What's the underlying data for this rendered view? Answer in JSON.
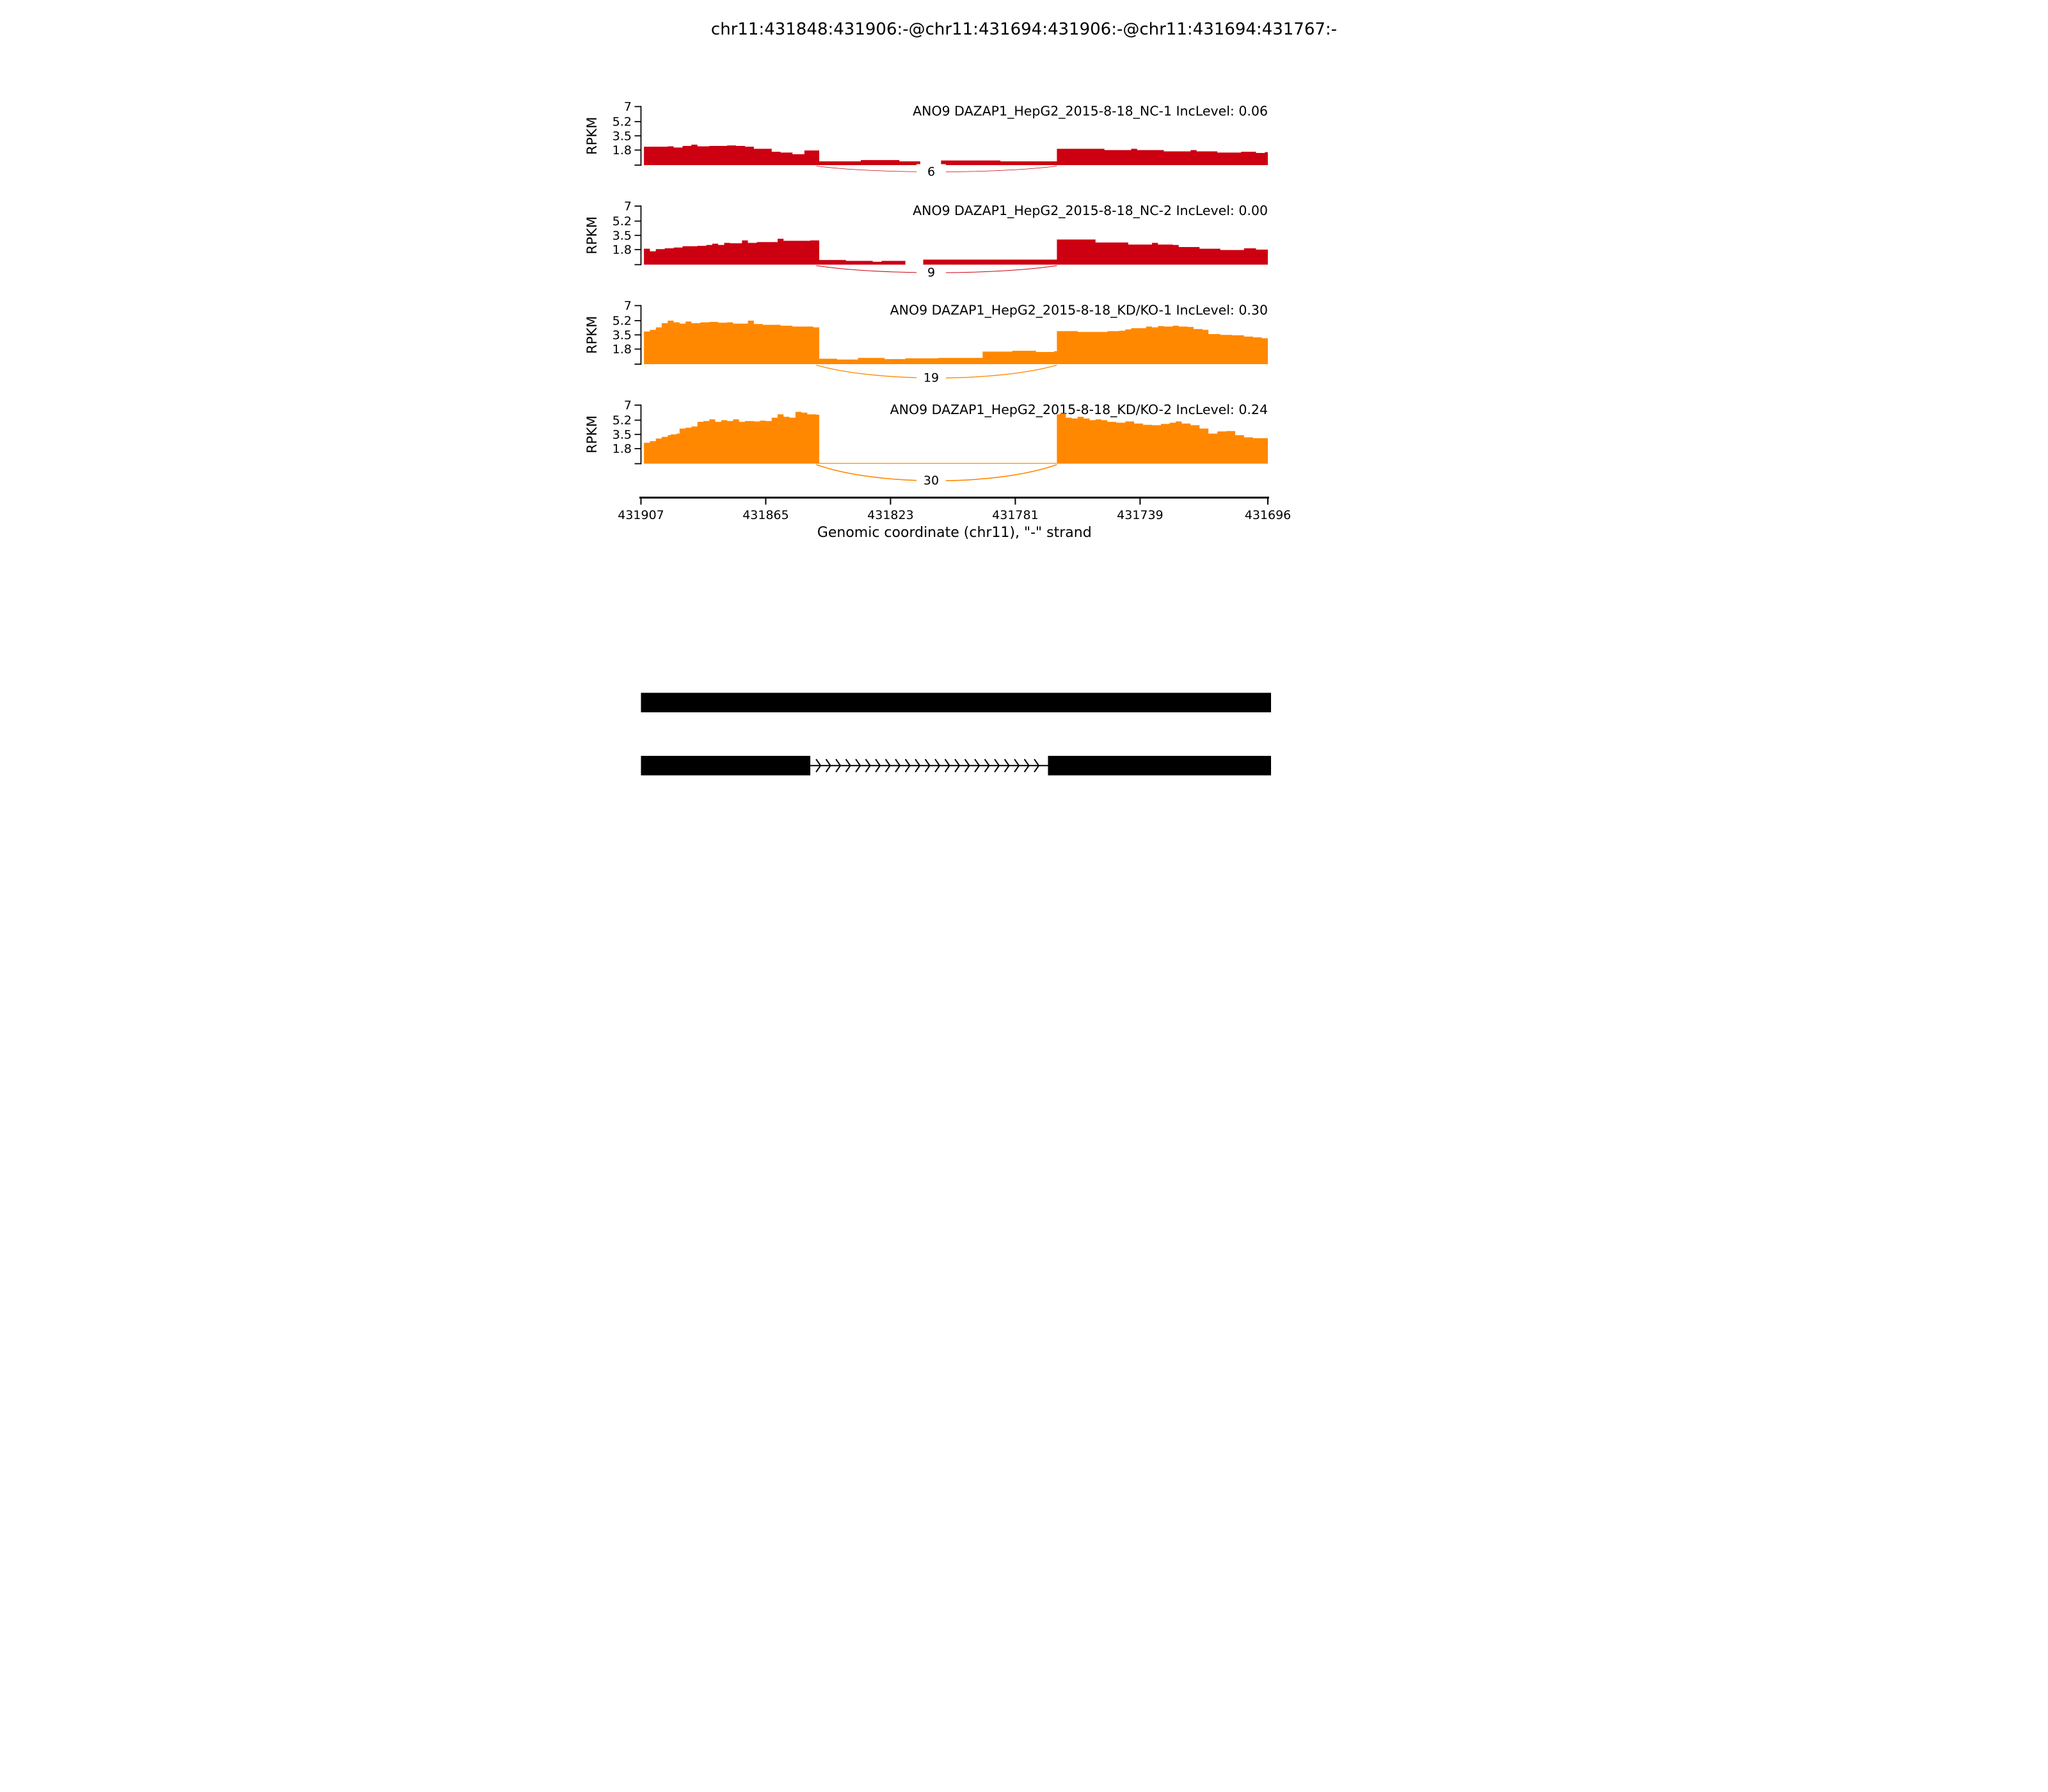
{
  "title": "chr11:431848:431906:-@chr11:431694:431906:-@chr11:431694:431767:-",
  "colors": {
    "control": "#CC0011",
    "knockdown": "#FF8800",
    "isoform": "#000000"
  },
  "chart_data": {
    "type": "area",
    "description": "rMATS sashimi plot, RNA-seq read coverage with junction read arcs",
    "x": {
      "label": "Genomic coordinate (chr11), \"-\" strand",
      "start": 431907,
      "end": 431696,
      "ticks": [
        431907,
        431865,
        431823,
        431781,
        431739,
        431696
      ]
    },
    "y": {
      "label": "RPKM",
      "max": 7,
      "ticks": [
        7,
        5.2,
        3.5,
        1.8
      ]
    },
    "junction": {
      "from": 431848,
      "to": 431767
    },
    "tracks": [
      {
        "sample": "NC-1",
        "label": "ANO9 DAZAP1_HepG2_2015-8-18_NC-1 IncLevel: 0.06",
        "inc_level": 0.06,
        "color": "#CC0011",
        "junction_reads": 6,
        "intron_zero": false,
        "coverage_rpkm": [
          [
            431906,
            2.2
          ],
          [
            431898,
            2.25
          ],
          [
            431896,
            2.1
          ],
          [
            431893,
            2.3
          ],
          [
            431890,
            2.45
          ],
          [
            431888,
            2.25
          ],
          [
            431884,
            2.3
          ],
          [
            431878,
            2.35
          ],
          [
            431875,
            2.3
          ],
          [
            431872,
            2.2
          ],
          [
            431869,
            1.95
          ],
          [
            431866,
            1.95
          ],
          [
            431863,
            1.6
          ],
          [
            431860,
            1.5
          ],
          [
            431856,
            1.3
          ],
          [
            431853,
            1.3
          ],
          [
            431852,
            1.75
          ],
          [
            431848,
            1.75
          ],
          [
            431847,
            0.45
          ],
          [
            431836,
            0.45
          ],
          [
            431833,
            0.6
          ],
          [
            431822,
            0.6
          ],
          [
            431820,
            0.45
          ],
          [
            431814,
            0.45
          ],
          [
            431813,
            0
          ],
          [
            431807,
            0
          ],
          [
            431806,
            0.55
          ],
          [
            431788,
            0.55
          ],
          [
            431786,
            0.45
          ],
          [
            431768,
            0.45
          ],
          [
            431767,
            1.95
          ],
          [
            431753,
            1.95
          ],
          [
            431751,
            1.8
          ],
          [
            431744,
            1.8
          ],
          [
            431742,
            1.95
          ],
          [
            431740,
            1.8
          ],
          [
            431733,
            1.8
          ],
          [
            431731,
            1.65
          ],
          [
            431724,
            1.65
          ],
          [
            431722,
            1.8
          ],
          [
            431720,
            1.65
          ],
          [
            431714,
            1.65
          ],
          [
            431713,
            1.5
          ],
          [
            431707,
            1.5
          ],
          [
            431705,
            1.6
          ],
          [
            431700,
            1.45
          ],
          [
            431697,
            1.55
          ],
          [
            431696,
            1.55
          ]
        ]
      },
      {
        "sample": "NC-2",
        "label": "ANO9 DAZAP1_HepG2_2015-8-18_NC-2 IncLevel: 0.00",
        "inc_level": 0.0,
        "color": "#CC0011",
        "junction_reads": 9,
        "intron_zero": false,
        "coverage_rpkm": [
          [
            431906,
            1.9
          ],
          [
            431904,
            1.6
          ],
          [
            431902,
            1.85
          ],
          [
            431899,
            1.95
          ],
          [
            431896,
            2.05
          ],
          [
            431893,
            2.2
          ],
          [
            431888,
            2.25
          ],
          [
            431885,
            2.35
          ],
          [
            431883,
            2.5
          ],
          [
            431881,
            2.35
          ],
          [
            431879,
            2.6
          ],
          [
            431877,
            2.55
          ],
          [
            431873,
            2.9
          ],
          [
            431871,
            2.6
          ],
          [
            431868,
            2.7
          ],
          [
            431863,
            2.7
          ],
          [
            431861,
            3.1
          ],
          [
            431859,
            2.85
          ],
          [
            431850,
            2.9
          ],
          [
            431848,
            2.9
          ],
          [
            431847,
            0.55
          ],
          [
            431840,
            0.55
          ],
          [
            431838,
            0.45
          ],
          [
            431831,
            0.45
          ],
          [
            431829,
            0.35
          ],
          [
            431826,
            0.45
          ],
          [
            431819,
            0.45
          ],
          [
            431818,
            0
          ],
          [
            431813,
            0
          ],
          [
            431812,
            0.6
          ],
          [
            431768,
            0.6
          ],
          [
            431767,
            3.0
          ],
          [
            431756,
            3.0
          ],
          [
            431754,
            2.65
          ],
          [
            431745,
            2.65
          ],
          [
            431743,
            2.4
          ],
          [
            431737,
            2.4
          ],
          [
            431735,
            2.6
          ],
          [
            431733,
            2.4
          ],
          [
            431728,
            2.35
          ],
          [
            431726,
            2.1
          ],
          [
            431721,
            2.1
          ],
          [
            431719,
            1.9
          ],
          [
            431714,
            1.9
          ],
          [
            431712,
            1.75
          ],
          [
            431706,
            1.75
          ],
          [
            431704,
            1.95
          ],
          [
            431700,
            1.8
          ],
          [
            431696,
            1.8
          ]
        ]
      },
      {
        "sample": "KD/KO-1",
        "label": "ANO9 DAZAP1_HepG2_2015-8-18_KD/KO-1 IncLevel: 0.30",
        "inc_level": 0.3,
        "color": "#FF8800",
        "junction_reads": 19,
        "intron_zero": false,
        "coverage_rpkm": [
          [
            431906,
            3.9
          ],
          [
            431904,
            4.1
          ],
          [
            431902,
            4.4
          ],
          [
            431900,
            4.9
          ],
          [
            431898,
            5.2
          ],
          [
            431896,
            5.0
          ],
          [
            431894,
            4.85
          ],
          [
            431892,
            5.1
          ],
          [
            431890,
            4.9
          ],
          [
            431887,
            5.0
          ],
          [
            431884,
            5.05
          ],
          [
            431881,
            4.95
          ],
          [
            431878,
            5.0
          ],
          [
            431876,
            4.85
          ],
          [
            431873,
            4.85
          ],
          [
            431871,
            5.2
          ],
          [
            431869,
            4.8
          ],
          [
            431866,
            4.7
          ],
          [
            431860,
            4.6
          ],
          [
            431856,
            4.5
          ],
          [
            431849,
            4.4
          ],
          [
            431848,
            4.4
          ],
          [
            431847,
            0.65
          ],
          [
            431843,
            0.65
          ],
          [
            431841,
            0.55
          ],
          [
            431836,
            0.55
          ],
          [
            431834,
            0.75
          ],
          [
            431827,
            0.75
          ],
          [
            431825,
            0.6
          ],
          [
            431820,
            0.6
          ],
          [
            431818,
            0.7
          ],
          [
            431808,
            0.7
          ],
          [
            431807,
            0.75
          ],
          [
            431793,
            0.75
          ],
          [
            431792,
            1.5
          ],
          [
            431784,
            1.5
          ],
          [
            431782,
            1.6
          ],
          [
            431776,
            1.6
          ],
          [
            431774,
            1.45
          ],
          [
            431769,
            1.45
          ],
          [
            431768,
            1.55
          ],
          [
            431767,
            3.95
          ],
          [
            431762,
            3.95
          ],
          [
            431760,
            3.85
          ],
          [
            431752,
            3.85
          ],
          [
            431750,
            3.95
          ],
          [
            431746,
            4.0
          ],
          [
            431744,
            4.15
          ],
          [
            431742,
            4.3
          ],
          [
            431739,
            4.3
          ],
          [
            431737,
            4.5
          ],
          [
            431735,
            4.4
          ],
          [
            431733,
            4.55
          ],
          [
            431731,
            4.5
          ],
          [
            431728,
            4.6
          ],
          [
            431726,
            4.5
          ],
          [
            431723,
            4.45
          ],
          [
            431721,
            4.2
          ],
          [
            431718,
            4.1
          ],
          [
            431716,
            3.6
          ],
          [
            431712,
            3.5
          ],
          [
            431708,
            3.45
          ],
          [
            431704,
            3.3
          ],
          [
            431701,
            3.2
          ],
          [
            431698,
            3.1
          ],
          [
            431696,
            3.1
          ]
        ]
      },
      {
        "sample": "KD/KO-2",
        "label": "ANO9 DAZAP1_HepG2_2015-8-18_KD/KO-2 IncLevel: 0.24",
        "inc_level": 0.24,
        "color": "#FF8800",
        "junction_reads": 30,
        "intron_zero": true,
        "coverage_rpkm": [
          [
            431906,
            2.5
          ],
          [
            431904,
            2.7
          ],
          [
            431902,
            3.0
          ],
          [
            431900,
            3.2
          ],
          [
            431898,
            3.4
          ],
          [
            431897,
            3.5
          ],
          [
            431895,
            3.6
          ],
          [
            431894,
            4.2
          ],
          [
            431892,
            4.3
          ],
          [
            431890,
            4.45
          ],
          [
            431888,
            5.0
          ],
          [
            431886,
            5.1
          ],
          [
            431884,
            5.3
          ],
          [
            431882,
            5.0
          ],
          [
            431880,
            5.2
          ],
          [
            431878,
            5.1
          ],
          [
            431876,
            5.3
          ],
          [
            431874,
            5.0
          ],
          [
            431872,
            5.1
          ],
          [
            431869,
            5.05
          ],
          [
            431867,
            5.15
          ],
          [
            431865,
            5.1
          ],
          [
            431863,
            5.5
          ],
          [
            431861,
            5.9
          ],
          [
            431859,
            5.6
          ],
          [
            431857,
            5.5
          ],
          [
            431855,
            6.2
          ],
          [
            431853,
            6.1
          ],
          [
            431851,
            5.9
          ],
          [
            431848,
            5.85
          ],
          [
            431847,
            0
          ],
          [
            431768,
            0
          ],
          [
            431767,
            5.9
          ],
          [
            431766,
            6.0
          ],
          [
            431764,
            5.5
          ],
          [
            431762,
            5.4
          ],
          [
            431760,
            5.6
          ],
          [
            431758,
            5.4
          ],
          [
            431756,
            5.2
          ],
          [
            431754,
            5.3
          ],
          [
            431752,
            5.2
          ],
          [
            431750,
            5.0
          ],
          [
            431747,
            4.9
          ],
          [
            431744,
            5.05
          ],
          [
            431741,
            4.8
          ],
          [
            431738,
            4.65
          ],
          [
            431735,
            4.6
          ],
          [
            431732,
            4.75
          ],
          [
            431729,
            4.9
          ],
          [
            431727,
            5.05
          ],
          [
            431725,
            4.8
          ],
          [
            431722,
            4.6
          ],
          [
            431719,
            4.2
          ],
          [
            431716,
            3.6
          ],
          [
            431713,
            3.85
          ],
          [
            431710,
            3.9
          ],
          [
            431707,
            3.4
          ],
          [
            431704,
            3.15
          ],
          [
            431701,
            3.05
          ],
          [
            431696,
            3.0
          ]
        ]
      }
    ],
    "isoforms": [
      {
        "name": "inclusion-isoform",
        "exons": [
          [
            431907,
            431694
          ]
        ]
      },
      {
        "name": "skipping-isoform",
        "exons": [
          [
            431907,
            431850
          ],
          [
            431770,
            431694
          ]
        ],
        "intron_arrow_direction": "right"
      }
    ]
  }
}
